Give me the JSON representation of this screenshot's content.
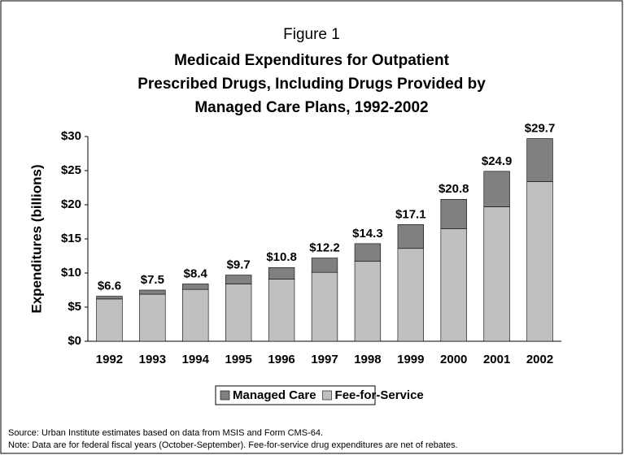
{
  "chart_data": {
    "type": "stacked_bar",
    "figure_label": "Figure 1",
    "title": [
      "Medicaid Expenditures for Outpatient",
      "Prescribed Drugs, Including Drugs Provided by",
      "Managed Care Plans, 1992-2002"
    ],
    "ylabel": "Expenditures (billions)",
    "categories": [
      "1992",
      "1993",
      "1994",
      "1995",
      "1996",
      "1997",
      "1998",
      "1999",
      "2000",
      "2001",
      "2002"
    ],
    "series": [
      {
        "name": "Fee-for-Service",
        "color": "#c0c0c0",
        "values": [
          6.2,
          6.9,
          7.6,
          8.4,
          9.1,
          10.1,
          11.7,
          13.6,
          16.5,
          19.7,
          23.4
        ]
      },
      {
        "name": "Managed Care",
        "color": "#808080",
        "values": [
          0.4,
          0.6,
          0.8,
          1.3,
          1.7,
          2.1,
          2.6,
          3.5,
          4.3,
          5.2,
          6.3
        ]
      }
    ],
    "totals": [
      6.6,
      7.5,
      8.4,
      9.7,
      10.8,
      12.2,
      14.3,
      17.1,
      20.8,
      24.9,
      29.7
    ],
    "total_labels": [
      "$6.6",
      "$7.5",
      "$8.4",
      "$9.7",
      "$10.8",
      "$12.2",
      "$14.3",
      "$17.1",
      "$20.8",
      "$24.9",
      "$29.7"
    ],
    "ylim": [
      0,
      30
    ],
    "yticks": [
      {
        "value": 0,
        "label": "$0"
      },
      {
        "value": 5,
        "label": "$5"
      },
      {
        "value": 10,
        "label": "$10"
      },
      {
        "value": 15,
        "label": "$15"
      },
      {
        "value": 20,
        "label": "$20"
      },
      {
        "value": 25,
        "label": "$25"
      },
      {
        "value": 30,
        "label": "$30"
      }
    ],
    "legend_order": [
      1,
      0
    ],
    "source": "Source: Urban Institute estimates based on data from MSIS and Form CMS-64.",
    "note": "Note: Data are for federal fiscal years (October-September).  Fee-for-service drug expenditures are net of rebates."
  }
}
